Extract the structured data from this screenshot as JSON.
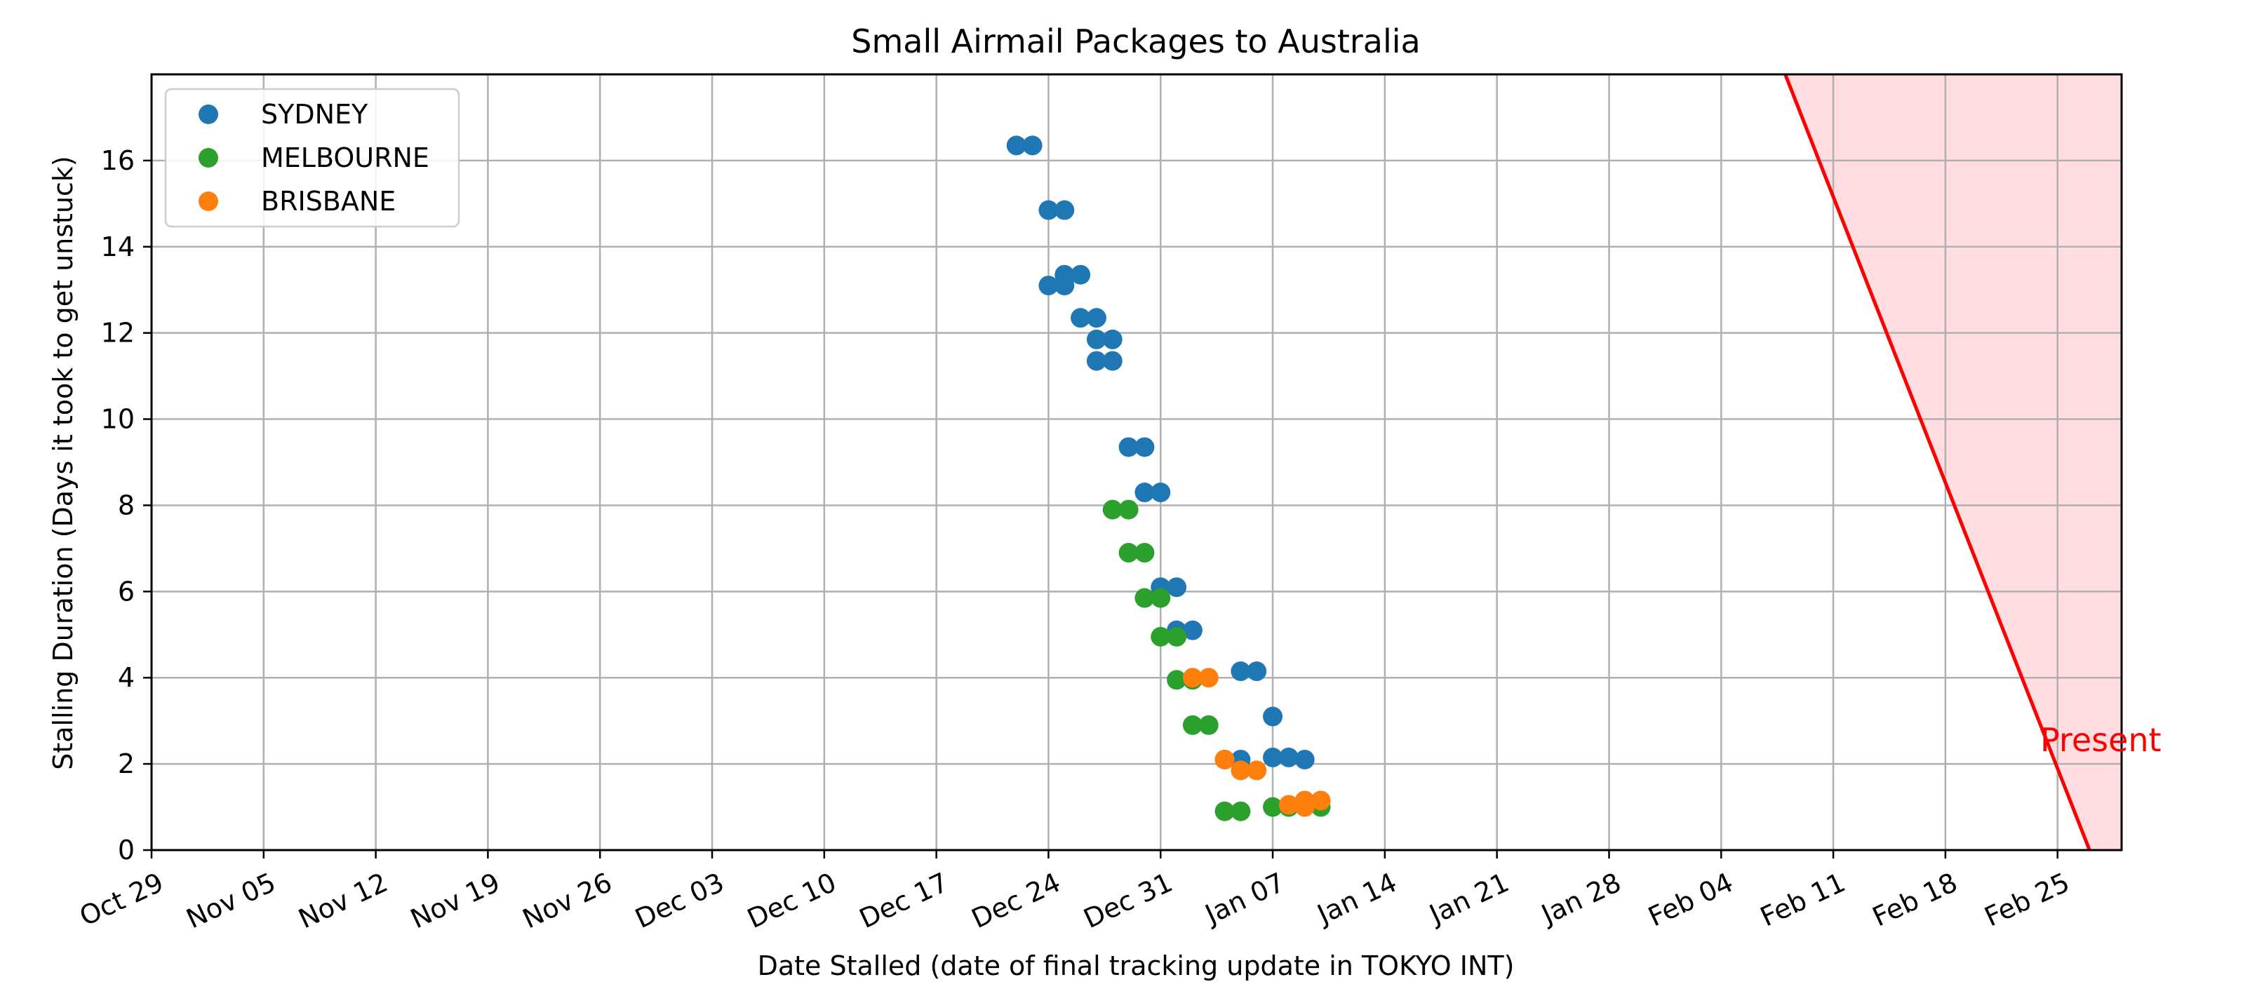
{
  "chart_data": {
    "type": "scatter",
    "title": "Small Airmail Packages to Australia",
    "xlabel": "Date Stalled (date of final tracking update in TOKYO INT)",
    "ylabel": "Stalling Duration (Days it took to get unstuck)",
    "x_type": "date",
    "xlim": [
      "2023-10-29",
      "2024-02-29"
    ],
    "ylim": [
      0,
      18
    ],
    "x_ticks": [
      "2023-10-29",
      "2023-11-05",
      "2023-11-12",
      "2023-11-19",
      "2023-11-26",
      "2023-12-03",
      "2023-12-10",
      "2023-12-17",
      "2023-12-24",
      "2023-12-31",
      "2024-01-07",
      "2024-01-14",
      "2024-01-21",
      "2024-01-28",
      "2024-02-04",
      "2024-02-11",
      "2024-02-18",
      "2024-02-25"
    ],
    "x_tick_labels": [
      "Oct 29",
      "Nov 05",
      "Nov 12",
      "Nov 19",
      "Nov 26",
      "Dec 03",
      "Dec 10",
      "Dec 17",
      "Dec 24",
      "Dec 31",
      "Jan 07",
      "Jan 14",
      "Jan 21",
      "Jan 28",
      "Feb 04",
      "Feb 11",
      "Feb 18",
      "Feb 25"
    ],
    "y_ticks": [
      0,
      2,
      4,
      6,
      8,
      10,
      12,
      14,
      16
    ],
    "y_tick_labels": [
      "0",
      "2",
      "4",
      "6",
      "8",
      "10",
      "12",
      "14",
      "16"
    ],
    "grid": true,
    "legend_position": "top-left",
    "series": [
      {
        "name": "SYDNEY",
        "color": "#1f77b4",
        "points": [
          [
            "2023-12-22",
            16.35
          ],
          [
            "2023-12-23",
            16.35
          ],
          [
            "2023-12-24",
            14.85
          ],
          [
            "2023-12-25",
            14.85
          ],
          [
            "2023-12-24",
            13.1
          ],
          [
            "2023-12-25",
            13.1
          ],
          [
            "2023-12-25",
            13.35
          ],
          [
            "2023-12-26",
            13.35
          ],
          [
            "2023-12-26",
            12.35
          ],
          [
            "2023-12-27",
            12.35
          ],
          [
            "2023-12-27",
            11.85
          ],
          [
            "2023-12-28",
            11.85
          ],
          [
            "2023-12-27",
            11.35
          ],
          [
            "2023-12-28",
            11.35
          ],
          [
            "2023-12-29",
            9.35
          ],
          [
            "2023-12-30",
            9.35
          ],
          [
            "2023-12-30",
            8.3
          ],
          [
            "2023-12-31",
            8.3
          ],
          [
            "2023-12-31",
            6.1
          ],
          [
            "2024-01-01",
            6.1
          ],
          [
            "2024-01-01",
            5.1
          ],
          [
            "2024-01-02",
            5.1
          ],
          [
            "2024-01-04",
            2.1
          ],
          [
            "2024-01-05",
            2.1
          ],
          [
            "2024-01-05",
            4.15
          ],
          [
            "2024-01-06",
            4.15
          ],
          [
            "2024-01-07",
            3.1
          ],
          [
            "2024-01-07",
            2.15
          ],
          [
            "2024-01-08",
            2.15
          ],
          [
            "2024-01-09",
            2.1
          ]
        ]
      },
      {
        "name": "MELBOURNE",
        "color": "#2ca02c",
        "points": [
          [
            "2023-12-28",
            7.9
          ],
          [
            "2023-12-29",
            7.9
          ],
          [
            "2023-12-29",
            6.9
          ],
          [
            "2023-12-30",
            6.9
          ],
          [
            "2023-12-30",
            5.85
          ],
          [
            "2023-12-31",
            5.85
          ],
          [
            "2023-12-31",
            4.95
          ],
          [
            "2024-01-01",
            4.95
          ],
          [
            "2024-01-01",
            3.95
          ],
          [
            "2024-01-02",
            3.95
          ],
          [
            "2024-01-02",
            2.9
          ],
          [
            "2024-01-03",
            2.9
          ],
          [
            "2024-01-04",
            0.9
          ],
          [
            "2024-01-05",
            0.9
          ],
          [
            "2024-01-07",
            1.0
          ],
          [
            "2024-01-08",
            1.0
          ],
          [
            "2024-01-10",
            1.0
          ]
        ]
      },
      {
        "name": "BRISBANE",
        "color": "#ff7f0e",
        "points": [
          [
            "2024-01-02",
            4.0
          ],
          [
            "2024-01-03",
            4.0
          ],
          [
            "2024-01-04",
            2.1
          ],
          [
            "2024-01-05",
            1.85
          ],
          [
            "2024-01-06",
            1.85
          ],
          [
            "2024-01-08",
            1.05
          ],
          [
            "2024-01-09",
            1.0
          ],
          [
            "2024-01-09",
            1.15
          ],
          [
            "2024-01-10",
            1.15
          ]
        ]
      }
    ],
    "present_line": {
      "label": "Present",
      "color": "#ff0000",
      "fill_color": "#ffdde1",
      "start": [
        "2024-02-08",
        18
      ],
      "end": [
        "2024-02-27",
        0
      ]
    }
  }
}
